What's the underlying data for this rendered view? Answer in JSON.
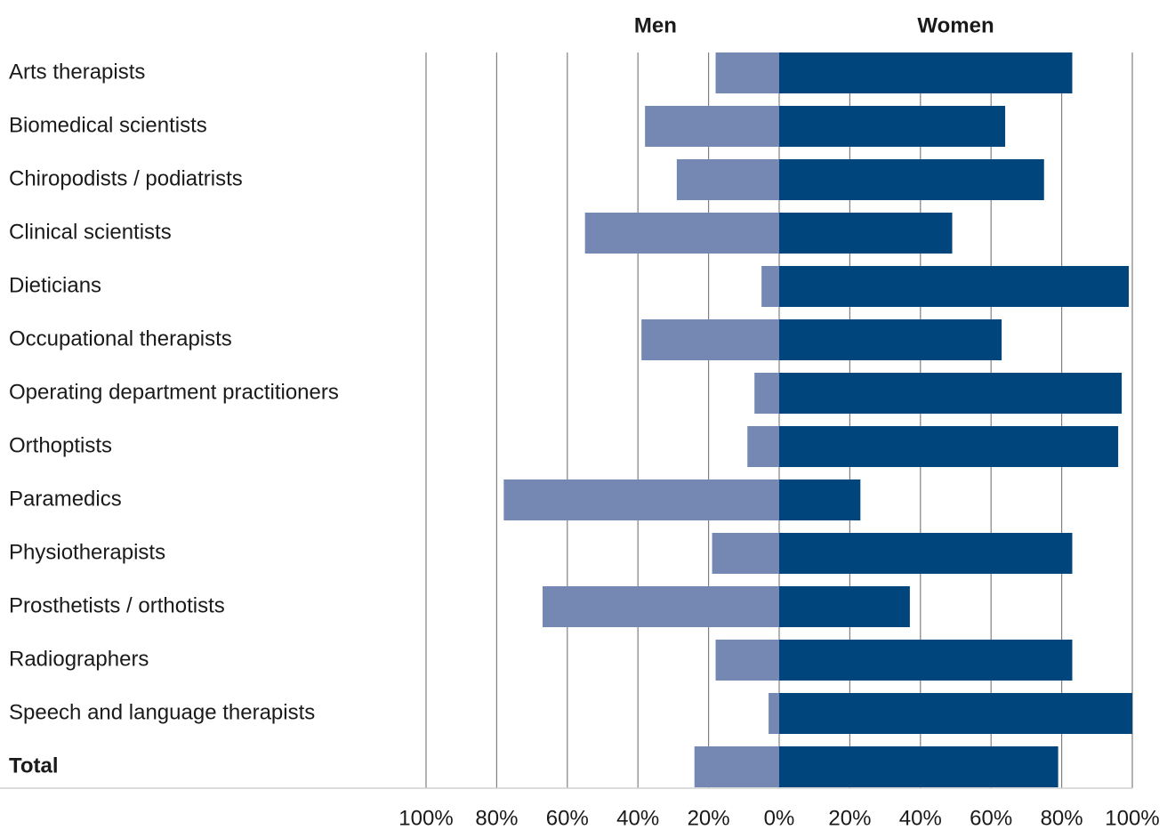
{
  "chart_data": {
    "type": "diverging_bar",
    "categories": [
      "Arts therapists",
      "Biomedical scientists",
      "Chiropodists / podiatrists",
      "Clinical scientists",
      "Dieticians",
      "Occupational therapists",
      "Operating department practitioners",
      "Orthoptists",
      "Paramedics",
      "Physiotherapists",
      "Prosthetists / orthotists",
      "Radiographers",
      "Speech and language therapists",
      "Total"
    ],
    "series": [
      {
        "name": "Men",
        "color": "#7588b3",
        "side": "left",
        "values": [
          18,
          38,
          29,
          55,
          5,
          39,
          7,
          9,
          78,
          19,
          67,
          18,
          3,
          24
        ]
      },
      {
        "name": "Women",
        "color": "#00457c",
        "side": "right",
        "values": [
          83,
          64,
          75,
          49,
          99,
          63,
          97,
          96,
          23,
          83,
          37,
          83,
          100,
          79
        ]
      }
    ],
    "xlim": [
      -100,
      100
    ],
    "xticks": [
      {
        "value": -100,
        "label": "100%"
      },
      {
        "value": -80,
        "label": "80%"
      },
      {
        "value": -60,
        "label": "60%"
      },
      {
        "value": -40,
        "label": "40%"
      },
      {
        "value": -20,
        "label": "20%"
      },
      {
        "value": 0,
        "label": "0%"
      },
      {
        "value": 20,
        "label": "20%"
      },
      {
        "value": 40,
        "label": "40%"
      },
      {
        "value": 60,
        "label": "60%"
      },
      {
        "value": 80,
        "label": "80%"
      },
      {
        "value": 100,
        "label": "100%"
      }
    ],
    "grid": true
  }
}
